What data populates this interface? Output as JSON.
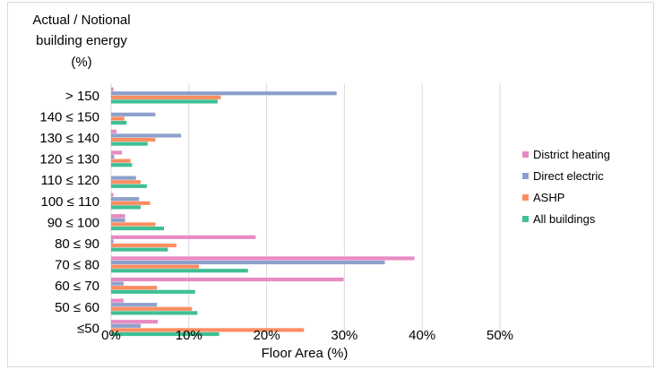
{
  "chart_data": {
    "type": "bar",
    "orientation": "horizontal",
    "ylabel_lines": [
      "Actual / Notional",
      "building energy",
      "(%)"
    ],
    "xlabel": "Floor Area (%)",
    "xlim": [
      0,
      50
    ],
    "xticks": [
      0,
      10,
      20,
      30,
      40,
      50
    ],
    "xtick_labels": [
      "0%",
      "10%",
      "20%",
      "30%",
      "40%",
      "50%"
    ],
    "grid": true,
    "legend_position": "right",
    "categories": [
      "> 150",
      "140 ≤ 150",
      "130 ≤ 140",
      "120 ≤ 130",
      "110 ≤ 120",
      "100 ≤ 110",
      "90 ≤ 100",
      "80 ≤ 90",
      "70 ≤ 80",
      "60 ≤ 70",
      "50 ≤ 60",
      "≤50"
    ],
    "series": [
      {
        "name": "District heating",
        "color": "#e78ac3",
        "values": [
          0.3,
          0,
          0.7,
          1.4,
          0,
          0.3,
          1.8,
          18.6,
          39.0,
          29.9,
          1.6,
          6.0
        ]
      },
      {
        "name": "Direct electric",
        "color": "#8da0cb",
        "values": [
          29.0,
          5.7,
          9.0,
          0.4,
          3.2,
          3.6,
          1.8,
          0.3,
          35.2,
          1.6,
          5.9,
          3.8
        ]
      },
      {
        "name": "ASHP",
        "color": "#fc8d62",
        "values": [
          14.1,
          1.7,
          5.7,
          2.5,
          3.8,
          5.0,
          5.7,
          8.4,
          11.3,
          5.9,
          10.4,
          24.8
        ]
      },
      {
        "name": "All buildings",
        "color": "#3fbf95",
        "values": [
          13.7,
          2.0,
          4.7,
          2.7,
          4.6,
          3.8,
          6.8,
          7.3,
          17.6,
          10.8,
          11.1,
          13.9
        ]
      }
    ]
  }
}
